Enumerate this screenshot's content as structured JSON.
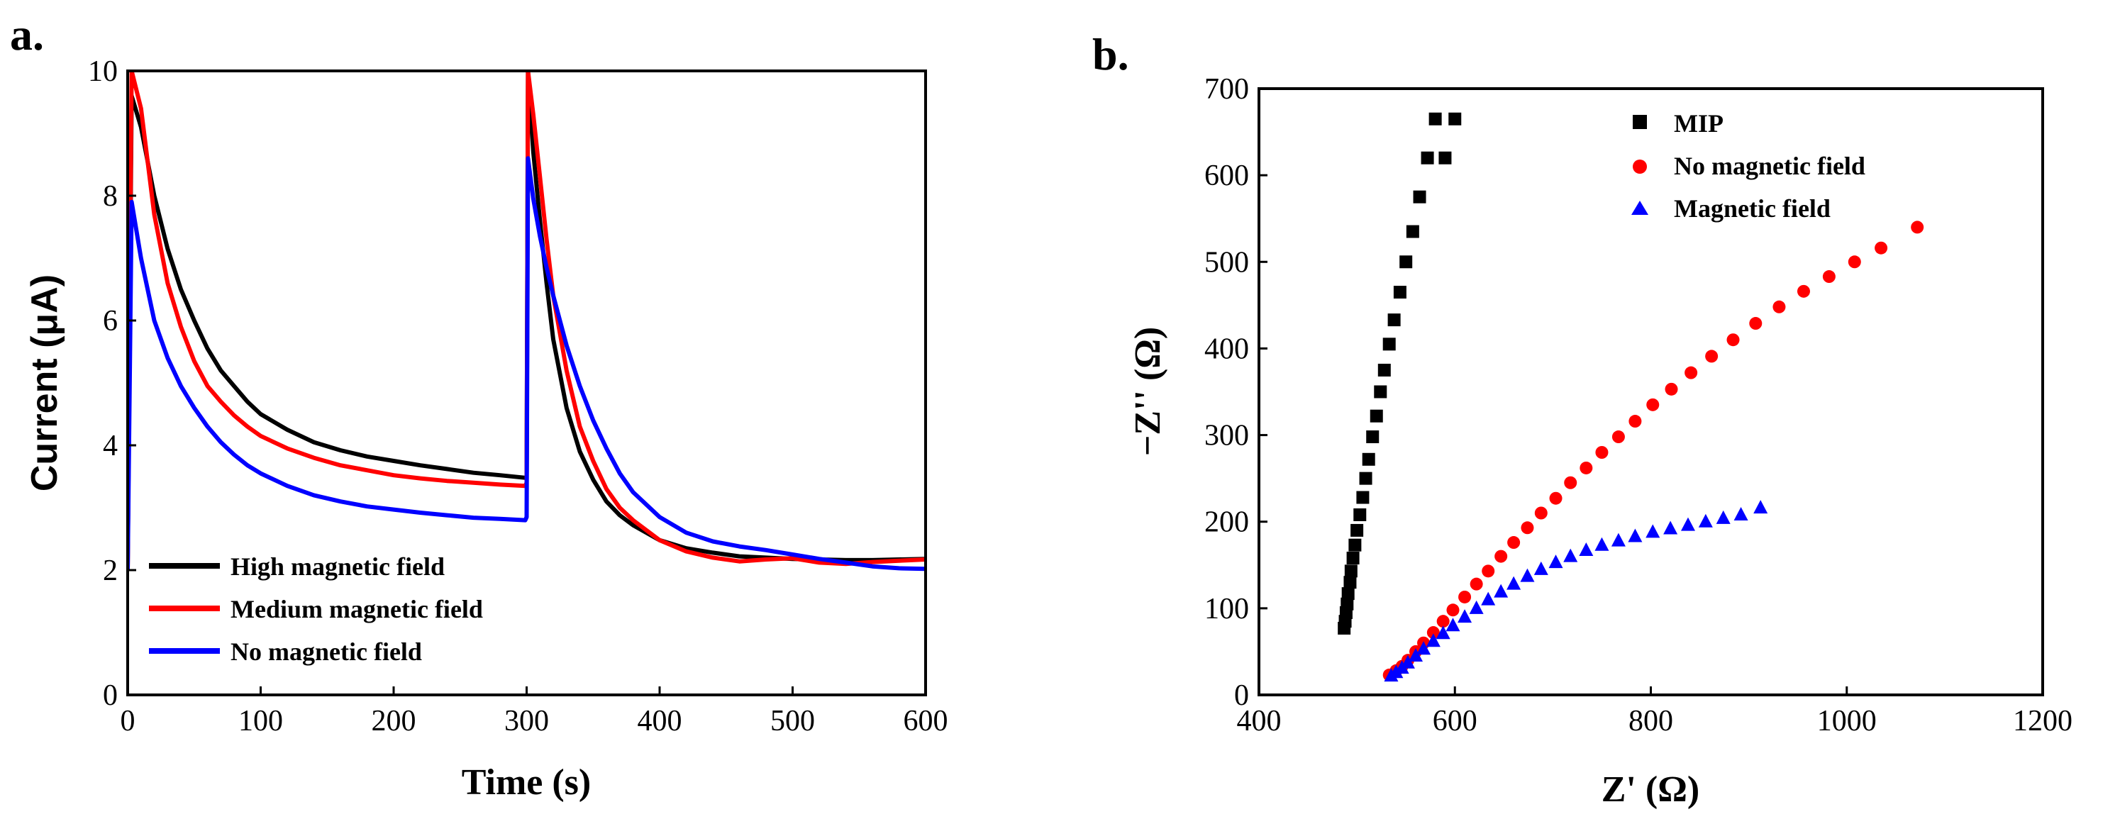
{
  "panels": {
    "a": {
      "label": "a."
    },
    "b": {
      "label": "b."
    }
  },
  "chart_data": [
    {
      "type": "line",
      "panel": "a",
      "title": "",
      "xlabel": "Time (s)",
      "ylabel": "Current (μA)",
      "xlim": [
        0,
        600
      ],
      "ylim": [
        0,
        10
      ],
      "xticks": [
        0,
        100,
        200,
        300,
        400,
        500,
        600
      ],
      "yticks": [
        0,
        2,
        4,
        6,
        8,
        10
      ],
      "xticklabels": [
        "0",
        "100",
        "200",
        "300",
        "400",
        "500",
        "600"
      ],
      "yticklabels": [
        "0",
        "2",
        "4",
        "6",
        "8",
        "10"
      ],
      "legend_position": "bottom-left",
      "series": [
        {
          "name": "High magnetic field",
          "color": "#000000",
          "x": [
            0,
            3,
            10,
            20,
            30,
            40,
            50,
            60,
            70,
            80,
            90,
            100,
            120,
            140,
            160,
            180,
            200,
            220,
            240,
            260,
            280,
            299,
            300,
            301,
            305,
            310,
            315,
            320,
            330,
            340,
            350,
            360,
            370,
            380,
            400,
            420,
            440,
            460,
            480,
            500,
            520,
            540,
            560,
            580,
            600
          ],
          "y": [
            2.0,
            9.6,
            9.1,
            8.0,
            7.15,
            6.5,
            6.0,
            5.55,
            5.2,
            4.95,
            4.7,
            4.5,
            4.25,
            4.05,
            3.92,
            3.82,
            3.75,
            3.68,
            3.62,
            3.56,
            3.52,
            3.48,
            3.5,
            10.0,
            8.7,
            7.6,
            6.6,
            5.7,
            4.6,
            3.9,
            3.45,
            3.1,
            2.88,
            2.72,
            2.48,
            2.35,
            2.28,
            2.22,
            2.2,
            2.18,
            2.17,
            2.16,
            2.16,
            2.17,
            2.18
          ]
        },
        {
          "name": "Medium magnetic field",
          "color": "#ff0000",
          "x": [
            0,
            3,
            10,
            20,
            30,
            40,
            50,
            60,
            70,
            80,
            90,
            100,
            120,
            140,
            160,
            180,
            200,
            220,
            240,
            260,
            280,
            299,
            300,
            301,
            305,
            310,
            315,
            320,
            330,
            340,
            350,
            360,
            370,
            380,
            400,
            420,
            440,
            460,
            480,
            500,
            520,
            540,
            560,
            580,
            600
          ],
          "y": [
            2.0,
            10.0,
            9.4,
            7.7,
            6.6,
            5.9,
            5.35,
            4.95,
            4.7,
            4.48,
            4.3,
            4.15,
            3.95,
            3.8,
            3.68,
            3.6,
            3.52,
            3.47,
            3.43,
            3.4,
            3.37,
            3.35,
            3.4,
            10.0,
            9.3,
            8.3,
            7.3,
            6.4,
            5.2,
            4.3,
            3.75,
            3.3,
            3.0,
            2.8,
            2.48,
            2.3,
            2.2,
            2.14,
            2.17,
            2.19,
            2.12,
            2.1,
            2.13,
            2.15,
            2.17
          ]
        },
        {
          "name": "No magnetic field",
          "color": "#0000ff",
          "x": [
            0,
            3,
            10,
            20,
            30,
            40,
            50,
            60,
            70,
            80,
            90,
            100,
            120,
            140,
            160,
            180,
            200,
            220,
            240,
            260,
            280,
            299,
            300,
            301,
            305,
            310,
            315,
            320,
            330,
            340,
            350,
            360,
            370,
            380,
            400,
            420,
            440,
            460,
            480,
            500,
            520,
            540,
            560,
            580,
            600
          ],
          "y": [
            2.0,
            7.9,
            7.0,
            6.0,
            5.4,
            4.95,
            4.6,
            4.3,
            4.05,
            3.85,
            3.68,
            3.55,
            3.35,
            3.2,
            3.1,
            3.02,
            2.97,
            2.92,
            2.88,
            2.84,
            2.82,
            2.8,
            2.85,
            8.6,
            7.95,
            7.35,
            6.85,
            6.4,
            5.6,
            4.95,
            4.4,
            3.95,
            3.55,
            3.25,
            2.85,
            2.6,
            2.46,
            2.38,
            2.32,
            2.25,
            2.18,
            2.12,
            2.06,
            2.03,
            2.02
          ]
        }
      ]
    },
    {
      "type": "scatter",
      "panel": "b",
      "title": "",
      "xlabel": "Z' (Ω)",
      "ylabel": "−Z'' (Ω)",
      "xlim": [
        400,
        1200
      ],
      "ylim": [
        0,
        700
      ],
      "xticks": [
        400,
        600,
        800,
        1000,
        1200
      ],
      "yticks": [
        0,
        100,
        200,
        300,
        400,
        500,
        600,
        700
      ],
      "xticklabels": [
        "400",
        "600",
        "800",
        "1000",
        "1200"
      ],
      "yticklabels": [
        "0",
        "100",
        "200",
        "300",
        "400",
        "500",
        "600",
        "700"
      ],
      "legend_position": "top-center",
      "series": [
        {
          "name": "MIP",
          "color": "#000000",
          "marker": "square",
          "x": [
            487,
            488,
            489,
            490,
            491,
            493,
            494,
            496,
            498,
            500,
            503,
            506,
            509,
            512,
            516,
            520,
            524,
            528,
            533,
            538,
            544,
            550,
            557,
            564,
            572,
            580,
            590,
            600
          ],
          "y": [
            77,
            85,
            95,
            105,
            117,
            130,
            143,
            158,
            173,
            190,
            208,
            228,
            250,
            272,
            298,
            322,
            350,
            375,
            405,
            433,
            465,
            500,
            535,
            575,
            620,
            665,
            620,
            665
          ]
        },
        {
          "name": "No magnetic field",
          "color": "#ff0000",
          "marker": "circle",
          "x": [
            533,
            540,
            546,
            552,
            560,
            568,
            578,
            588,
            598,
            610,
            622,
            634,
            647,
            660,
            674,
            688,
            703,
            718,
            734,
            750,
            767,
            784,
            802,
            821,
            841,
            862,
            884,
            907,
            931,
            956,
            982,
            1008,
            1035,
            1072
          ],
          "y": [
            23,
            28,
            33,
            40,
            50,
            60,
            72,
            85,
            98,
            113,
            128,
            143,
            160,
            176,
            193,
            210,
            227,
            245,
            262,
            280,
            298,
            316,
            335,
            353,
            372,
            391,
            410,
            429,
            448,
            466,
            483,
            500,
            516,
            540
          ]
        },
        {
          "name": "Magnetic field",
          "color": "#0000ff",
          "marker": "triangle",
          "x": [
            535,
            540,
            546,
            552,
            560,
            568,
            578,
            588,
            598,
            610,
            622,
            634,
            647,
            660,
            674,
            688,
            703,
            718,
            734,
            750,
            767,
            784,
            802,
            820,
            838,
            856,
            874,
            892,
            912
          ],
          "y": [
            22,
            26,
            31,
            37,
            45,
            53,
            62,
            71,
            80,
            90,
            100,
            110,
            119,
            128,
            137,
            145,
            153,
            160,
            167,
            173,
            178,
            183,
            188,
            192,
            196,
            200,
            204,
            208,
            216
          ]
        }
      ]
    }
  ]
}
